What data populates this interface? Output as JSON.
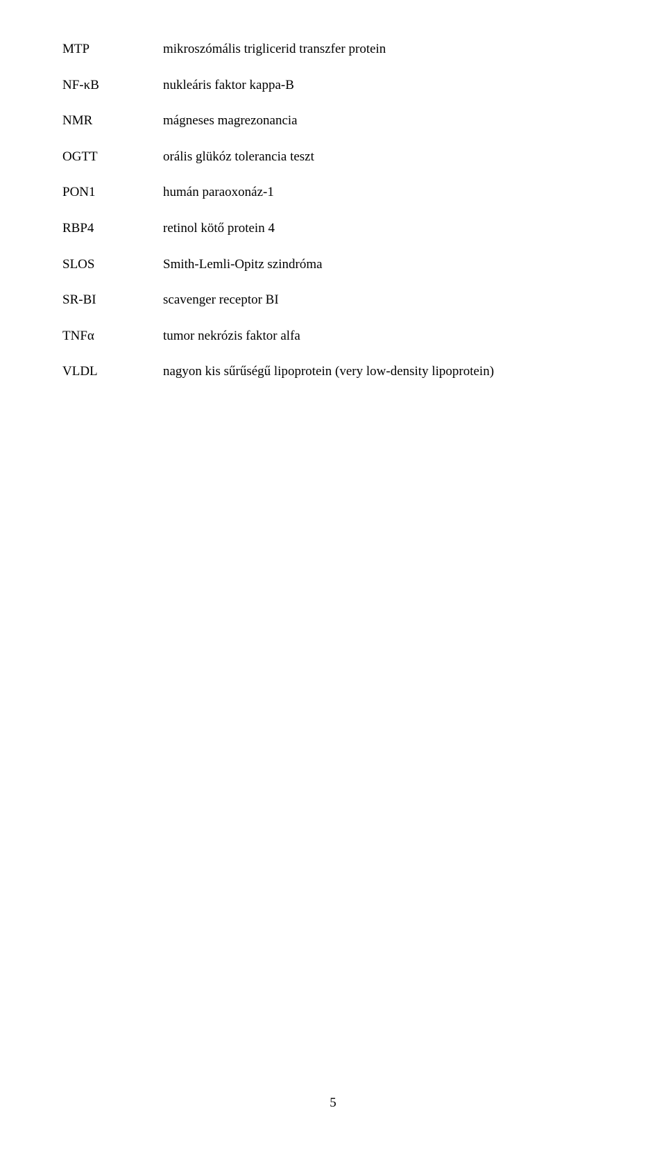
{
  "page": {
    "number": "5",
    "background_color": "#ffffff",
    "text_color": "#000000",
    "font_family": "Times New Roman",
    "font_size_pt": 14
  },
  "abbreviations": [
    {
      "term": "MTP",
      "definition": "mikroszómális triglicerid transzfer protein"
    },
    {
      "term": "NF-κB",
      "definition": "nukleáris faktor kappa-B"
    },
    {
      "term": "NMR",
      "definition": "mágneses magrezonancia"
    },
    {
      "term": "OGTT",
      "definition": "orális glükóz tolerancia teszt"
    },
    {
      "term": "PON1",
      "definition": "humán paraoxonáz-1"
    },
    {
      "term": "RBP4",
      "definition": "retinol kötő protein 4"
    },
    {
      "term": "SLOS",
      "definition": "Smith-Lemli-Opitz szindróma"
    },
    {
      "term": "SR-BI",
      "definition": "scavenger receptor BI"
    },
    {
      "term": "TNFα",
      "definition": "tumor nekrózis faktor alfa"
    },
    {
      "term": "VLDL",
      "definition": "nagyon kis sűrűségű lipoprotein (very low-density lipoprotein)"
    }
  ]
}
